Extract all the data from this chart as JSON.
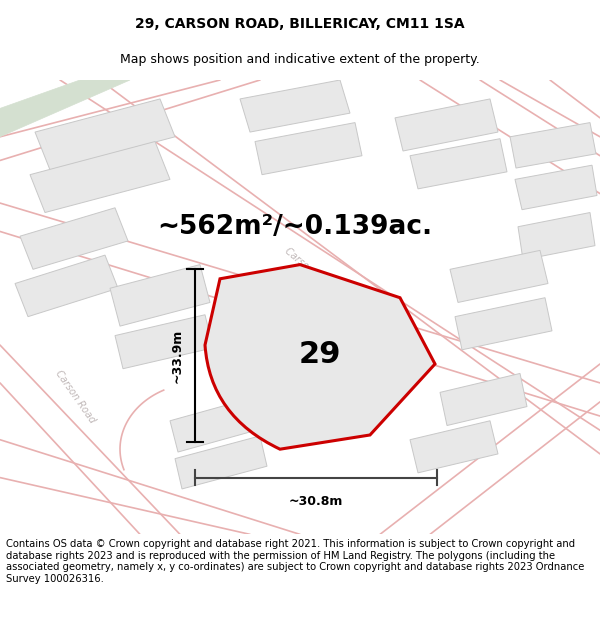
{
  "title": "29, CARSON ROAD, BILLERICAY, CM11 1SA",
  "subtitle": "Map shows position and indicative extent of the property.",
  "area_text": "~562m²/~0.139ac.",
  "house_number": "29",
  "dim_width": "~30.8m",
  "dim_height": "~33.9m",
  "footer": "Contains OS data © Crown copyright and database right 2021. This information is subject to Crown copyright and database rights 2023 and is reproduced with the permission of HM Land Registry. The polygons (including the associated geometry, namely x, y co-ordinates) are subject to Crown copyright and database rights 2023 Ordnance Survey 100026316.",
  "map_bg": "#f5f5f5",
  "road_color": "#e8b0b0",
  "building_fc": "#e8e8e8",
  "building_ec": "#c8c8c8",
  "green_fc": "#d4e0d0",
  "property_fc": "#e8e8e8",
  "property_ec": "#cc0000",
  "title_fontsize": 10,
  "subtitle_fontsize": 9,
  "area_fontsize": 19,
  "number_fontsize": 22,
  "footer_fontsize": 7.2,
  "dim_fontsize": 9
}
